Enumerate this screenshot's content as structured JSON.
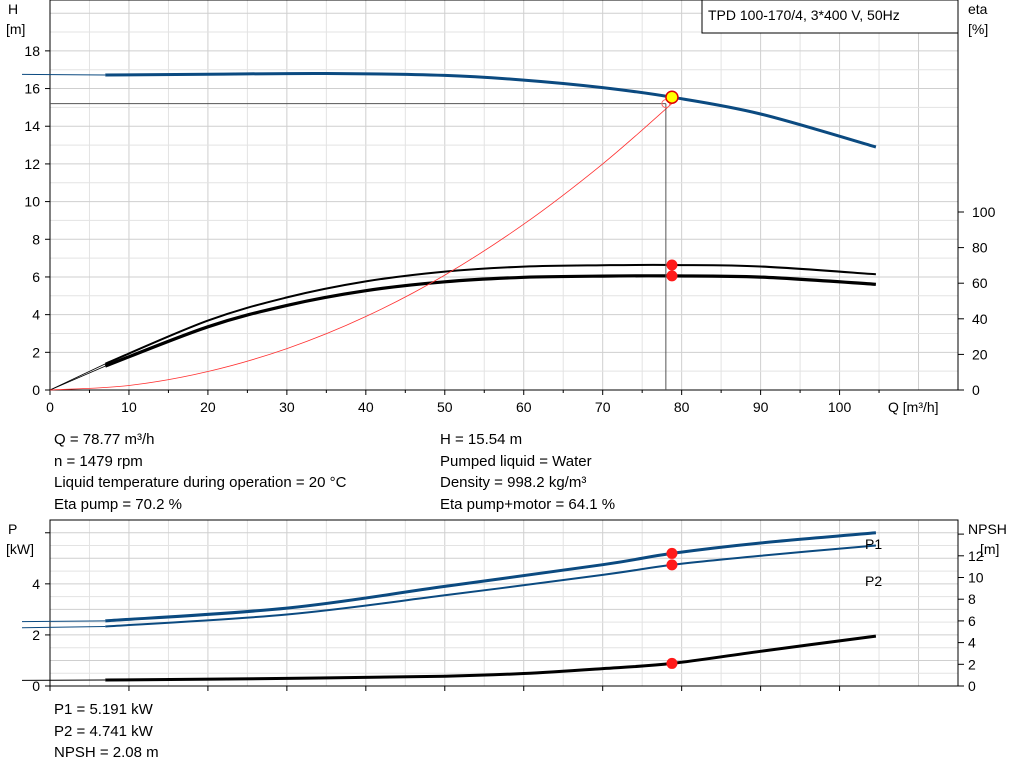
{
  "chart_data": [
    {
      "type": "line",
      "title": "TPD 100-170/4, 3*400 V, 50Hz",
      "y_left_label": [
        "H",
        "[m]"
      ],
      "y_right_label": [
        "eta",
        "[%]"
      ],
      "x_label": "Q [m³/h]",
      "xlim": [
        0,
        115
      ],
      "ylim_left": [
        0,
        20.7
      ],
      "ylim_right": [
        0,
        100
      ],
      "grid": true,
      "x_ticks": [
        "0",
        "10",
        "20",
        "30",
        "40",
        "50",
        "60",
        "70",
        "80",
        "90",
        "100"
      ],
      "y_left_ticks": [
        "0",
        "2",
        "4",
        "6",
        "8",
        "10",
        "12",
        "14",
        "16",
        "18"
      ],
      "y_right_ticks": [
        "0",
        "20",
        "40",
        "60",
        "80",
        "100"
      ],
      "series": [
        {
          "role": "head",
          "axis": "left",
          "color": "#0b4a80",
          "x": [
            7,
            20,
            35,
            50,
            60,
            70,
            78.77,
            90,
            104.6
          ],
          "y": [
            16.72,
            16.76,
            16.8,
            16.7,
            16.45,
            16.05,
            15.54,
            14.65,
            12.9
          ]
        },
        {
          "role": "eta_pump",
          "axis": "right",
          "color": "#000000",
          "x": [
            7,
            20,
            30,
            40,
            50,
            60,
            70,
            78.77,
            90,
            104.6
          ],
          "y": [
            14.7,
            39,
            52,
            61,
            66.5,
            69.3,
            70.1,
            70.2,
            69.4,
            65
          ]
        },
        {
          "role": "eta_pump_motor",
          "axis": "right",
          "color": "#000000",
          "x": [
            7,
            20,
            30,
            40,
            50,
            60,
            70,
            78.77,
            90,
            104.6
          ],
          "y": [
            13.4,
            35.5,
            47.5,
            55.8,
            60.8,
            63.3,
            64.0,
            64.1,
            63.4,
            59.4
          ]
        },
        {
          "role": "system_curve",
          "axis": "left",
          "color": "#ff3030",
          "x": [
            0,
            10,
            20,
            30,
            40,
            50,
            60,
            70,
            78.77
          ],
          "y": [
            0,
            0.24,
            0.98,
            2.2,
            3.9,
            6.1,
            8.8,
            12.0,
            15.2
          ]
        }
      ],
      "duty_point": {
        "q": 78.77,
        "h": 15.54,
        "eta_pump": 70.2,
        "eta_pump_motor": 64.1
      },
      "guide_line": {
        "q": 78,
        "h": 15.2
      }
    },
    {
      "type": "line",
      "y_left_label": [
        "P",
        "[kW]"
      ],
      "y_right_label": [
        "NPSH",
        "[m]"
      ],
      "xlim": [
        0,
        115
      ],
      "ylim_left": [
        0,
        6.5
      ],
      "ylim_right": [
        0,
        15.3
      ],
      "grid": true,
      "y_left_ticks": [
        "0",
        "2",
        "4"
      ],
      "y_right_ticks": [
        "0",
        "2",
        "4",
        "6",
        "8",
        "10",
        "12"
      ],
      "series": [
        {
          "name": "P1",
          "axis": "left",
          "color": "#0b4a80",
          "x": [
            7,
            30,
            50,
            70,
            78.77,
            90,
            104.6
          ],
          "y": [
            2.55,
            3.05,
            3.9,
            4.75,
            5.191,
            5.6,
            6.0
          ]
        },
        {
          "name": "P2",
          "axis": "left",
          "color": "#0b4a80",
          "x": [
            7,
            30,
            50,
            70,
            78.77,
            90,
            104.6
          ],
          "y": [
            2.33,
            2.8,
            3.55,
            4.35,
            4.741,
            5.1,
            5.5
          ]
        },
        {
          "role": "npsh",
          "axis": "right",
          "color": "#000000",
          "x": [
            7,
            30,
            50,
            60,
            70,
            78.77,
            90,
            104.6
          ],
          "y": [
            0.55,
            0.7,
            0.9,
            1.15,
            1.6,
            2.08,
            3.2,
            4.6
          ]
        }
      ],
      "duty_point": {
        "q": 78.77,
        "p1": 5.191,
        "p2": 4.741,
        "npsh": 2.08
      }
    }
  ],
  "info_top_left": [
    "Q = 78.77 m³/h",
    "n = 1479 rpm",
    "Liquid temperature during operation = 20 °C",
    "Eta pump = 70.2 %"
  ],
  "info_top_right": [
    "H = 15.54 m",
    "Pumped liquid = Water",
    "Density = 998.2 kg/m³",
    "Eta pump+motor = 64.1 %"
  ],
  "info_bottom": [
    "P1 = 5.191 kW",
    "P2 = 4.741 kW",
    "NPSH = 2.08 m"
  ]
}
